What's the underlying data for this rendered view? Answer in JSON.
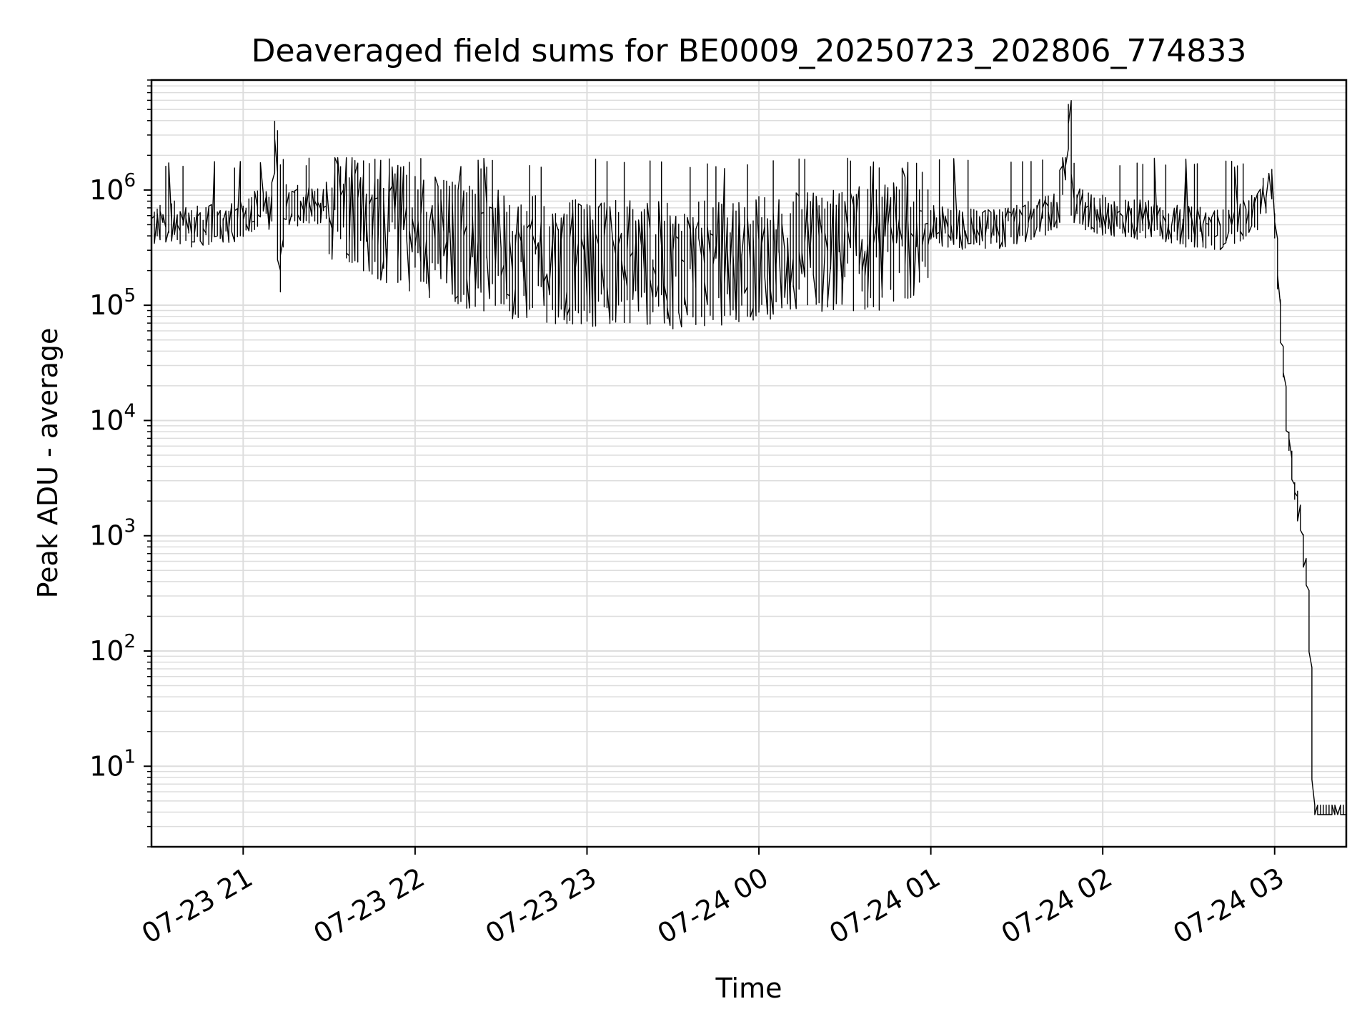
{
  "chart_data": {
    "type": "line",
    "title": "Deaveraged field sums for BE0009_20250723_202806_774833",
    "xlabel": "Time",
    "ylabel": "Peak ADU - average",
    "y_scale": "log",
    "ylim": [
      2,
      9000000
    ],
    "xlim": [
      "2025-07-23 20:28",
      "2025-07-24 03:25"
    ],
    "grid": true,
    "line_color": "#000000",
    "grid_color": "#dddddd",
    "x_ticks": [
      {
        "label": "07-23 21",
        "value": "2025-07-23 21:00"
      },
      {
        "label": "07-23 22",
        "value": "2025-07-23 22:00"
      },
      {
        "label": "07-23 23",
        "value": "2025-07-23 23:00"
      },
      {
        "label": "07-24 00",
        "value": "2025-07-24 00:00"
      },
      {
        "label": "07-24 01",
        "value": "2025-07-24 01:00"
      },
      {
        "label": "07-24 02",
        "value": "2025-07-24 02:00"
      },
      {
        "label": "07-24 03",
        "value": "2025-07-24 03:00"
      }
    ],
    "y_ticks": [
      {
        "base": "10",
        "exp": "1",
        "value": 10
      },
      {
        "base": "10",
        "exp": "2",
        "value": 100
      },
      {
        "base": "10",
        "exp": "3",
        "value": 1000
      },
      {
        "base": "10",
        "exp": "4",
        "value": 10000
      },
      {
        "base": "10",
        "exp": "5",
        "value": 100000
      },
      {
        "base": "10",
        "exp": "6",
        "value": 1000000
      }
    ],
    "series": [
      {
        "points": [
          [
            "2025-07-23 20:28",
            450000
          ],
          [
            "2025-07-23 20:35",
            550000
          ],
          [
            "2025-07-23 20:42",
            480000
          ],
          [
            "2025-07-23 20:50",
            500000
          ],
          [
            "2025-07-23 20:58",
            520000
          ],
          [
            "2025-07-23 21:05",
            700000
          ],
          [
            "2025-07-23 21:10",
            650000
          ],
          [
            "2025-07-23 21:12",
            3300000
          ],
          [
            "2025-07-23 21:13",
            150000
          ],
          [
            "2025-07-23 21:15",
            750000
          ],
          [
            "2025-07-23 21:25",
            700000
          ],
          [
            "2025-07-23 21:35",
            900000
          ],
          [
            "2025-07-23 21:45",
            600000
          ],
          [
            "2025-07-23 22:00",
            450000
          ],
          [
            "2025-07-23 22:15",
            350000
          ],
          [
            "2025-07-23 22:30",
            280000
          ],
          [
            "2025-07-23 22:45",
            250000
          ],
          [
            "2025-07-23 23:00",
            230000
          ],
          [
            "2025-07-23 23:15",
            240000
          ],
          [
            "2025-07-23 23:30",
            220000
          ],
          [
            "2025-07-23 23:45",
            230000
          ],
          [
            "2025-07-24 00:00",
            260000
          ],
          [
            "2025-07-24 00:15",
            280000
          ],
          [
            "2025-07-24 00:30",
            300000
          ],
          [
            "2025-07-24 00:45",
            320000
          ],
          [
            "2025-07-24 01:00",
            500000
          ],
          [
            "2025-07-24 01:15",
            450000
          ],
          [
            "2025-07-24 01:30",
            480000
          ],
          [
            "2025-07-24 01:45",
            650000
          ],
          [
            "2025-07-24 01:49",
            4700000
          ],
          [
            "2025-07-24 01:50",
            700000
          ],
          [
            "2025-07-24 02:00",
            600000
          ],
          [
            "2025-07-24 02:15",
            550000
          ],
          [
            "2025-07-24 02:30",
            480000
          ],
          [
            "2025-07-24 02:45",
            450000
          ],
          [
            "2025-07-24 02:55",
            700000
          ],
          [
            "2025-07-24 02:59",
            1100000
          ],
          [
            "2025-07-24 03:00",
            1000000
          ],
          [
            "2025-07-24 03:02",
            130000
          ],
          [
            "2025-07-24 03:05",
            8000
          ],
          [
            "2025-07-24 03:07",
            3500
          ],
          [
            "2025-07-24 03:10",
            1200
          ],
          [
            "2025-07-24 03:12",
            400
          ],
          [
            "2025-07-24 03:13",
            80
          ],
          [
            "2025-07-24 03:14",
            4
          ],
          [
            "2025-07-24 03:25",
            4
          ]
        ]
      }
    ]
  }
}
